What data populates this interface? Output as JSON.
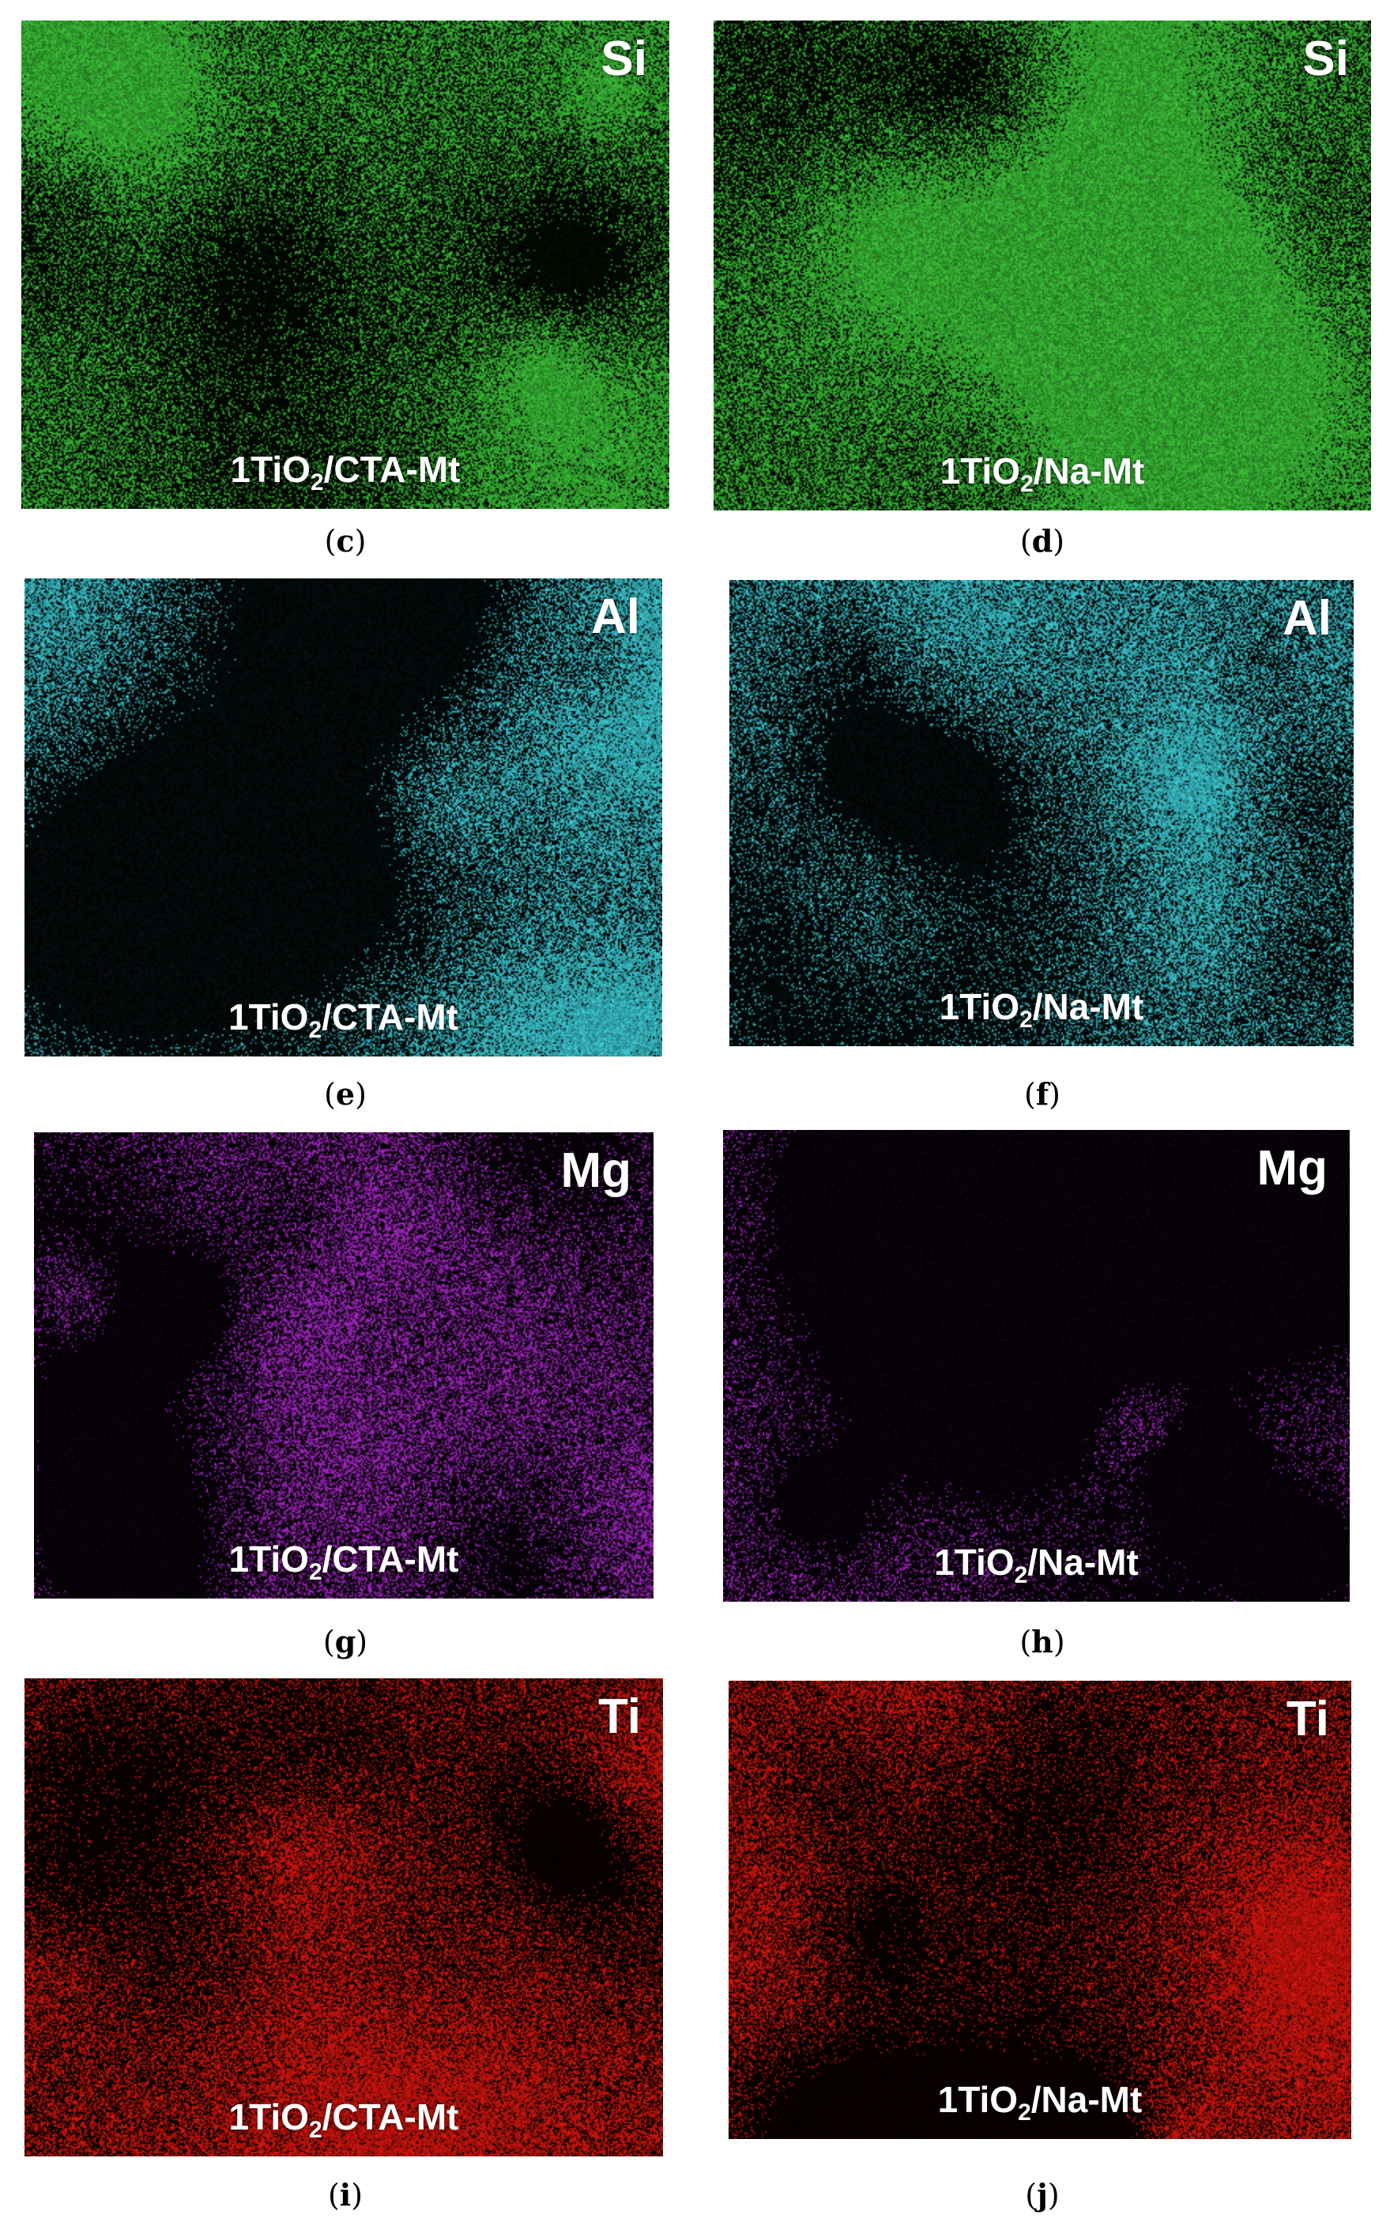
{
  "sample_prefix": "1TiO",
  "sample_sub": "2",
  "panels": [
    {
      "element": "Si",
      "sample_suffix": "/CTA-Mt",
      "letter": "c",
      "color": "#3ec83a"
    },
    {
      "element": "Si",
      "sample_suffix": "/Na-Mt",
      "letter": "d",
      "color": "#3ec83a"
    },
    {
      "element": "Al",
      "sample_suffix": "/CTA-Mt",
      "letter": "e",
      "color": "#3fd2dc"
    },
    {
      "element": "Al",
      "sample_suffix": "/Na-Mt",
      "letter": "f",
      "color": "#3fd2dc"
    },
    {
      "element": "Mg",
      "sample_suffix": "/CTA-Mt",
      "letter": "g",
      "color": "#b028d2"
    },
    {
      "element": "Mg",
      "sample_suffix": "/Na-Mt",
      "letter": "h",
      "color": "#b028d2"
    },
    {
      "element": "Ti",
      "sample_suffix": "/CTA-Mt",
      "letter": "i",
      "color": "#e0160e"
    },
    {
      "element": "Ti",
      "sample_suffix": "/Na-Mt",
      "letter": "j",
      "color": "#e0160e"
    }
  ]
}
